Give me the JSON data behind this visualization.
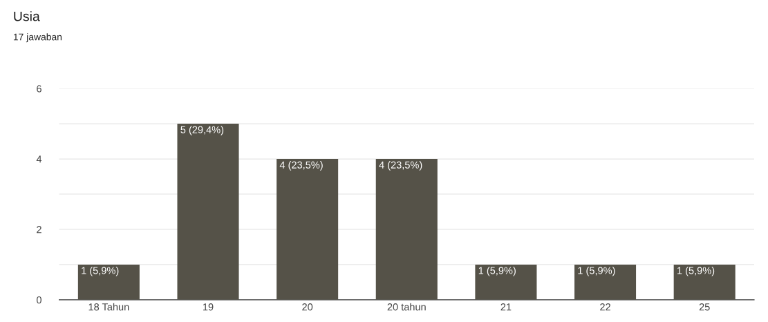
{
  "chart_data": {
    "type": "bar",
    "title": "Usia",
    "subtitle": "17 jawaban",
    "categories": [
      "18 Tahun",
      "19",
      "20",
      "20 tahun",
      "21",
      "22",
      "25"
    ],
    "values": [
      1,
      5,
      4,
      4,
      1,
      1,
      1
    ],
    "value_labels": [
      "1 (5,9%)",
      "5 (29,4%)",
      "4 (23,5%)",
      "4 (23,5%)",
      "1 (5,9%)",
      "1 (5,9%)",
      "1 (5,9%)"
    ],
    "color": "#555248",
    "ylim": [
      0,
      6
    ],
    "yticks": [
      0,
      {
        "value": 1,
        "label": null
      },
      2,
      {
        "value": 3,
        "label": null
      },
      4,
      {
        "value": 5,
        "label": null
      },
      6
    ],
    "grid": "y",
    "legend": false
  }
}
